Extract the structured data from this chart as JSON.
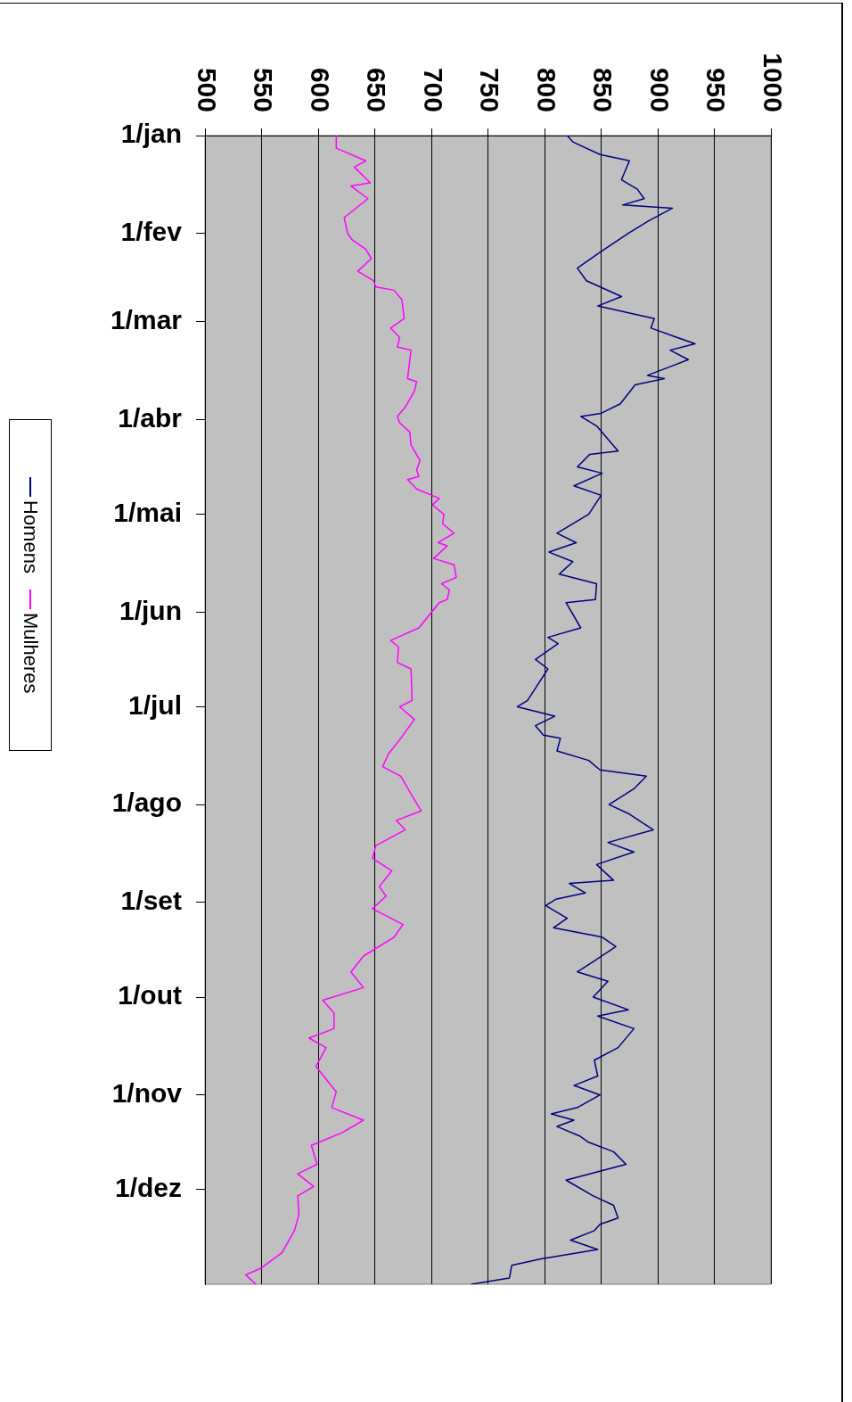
{
  "chart_data": {
    "type": "line",
    "orientation": "horizontal",
    "xlim": [
      500,
      1000
    ],
    "xticks": [
      500,
      550,
      600,
      650,
      700,
      750,
      800,
      850,
      900,
      950,
      1000
    ],
    "yticks": [
      {
        "value": "--01-01",
        "label": "1/jan"
      },
      {
        "value": "--02-01",
        "label": "1/fev"
      },
      {
        "value": "--03-01",
        "label": "1/mar"
      },
      {
        "value": "--04-01",
        "label": "1/abr"
      },
      {
        "value": "--05-01",
        "label": "1/mai"
      },
      {
        "value": "--06-01",
        "label": "1/jun"
      },
      {
        "value": "--07-01",
        "label": "1/jul"
      },
      {
        "value": "--08-01",
        "label": "1/ago"
      },
      {
        "value": "--09-01",
        "label": "1/set"
      },
      {
        "value": "--10-01",
        "label": "1/out"
      },
      {
        "value": "--11-01",
        "label": "1/nov"
      },
      {
        "value": "--12-01",
        "label": "1/dez"
      }
    ],
    "ylim": [
      "--12-31",
      "--01-01"
    ],
    "grid": "x",
    "legend": "left",
    "marker": "none",
    "line_style": "solid",
    "series": [
      {
        "name": "Homens",
        "color": "#000080",
        "x": [
          "--01-01",
          "--01-03",
          "--01-07",
          "--01-09",
          "--01-15",
          "--01-18",
          "--01-21",
          "--01-23",
          "--01-24",
          "--01-28",
          "--02-01",
          "--02-07",
          "--02-12",
          "--02-16",
          "--02-21",
          "--02-24",
          "--02-28",
          "--03-03",
          "--03-08",
          "--03-10",
          "--03-13",
          "--03-18",
          "--03-19",
          "--03-21",
          "--03-27",
          "--03-30",
          "--03-31",
          "--04-03",
          "--04-11",
          "--04-12",
          "--04-16",
          "--04-18",
          "--04-22",
          "--04-25",
          "--05-01",
          "--05-07",
          "--05-10",
          "--05-13",
          "--05-16",
          "--05-20",
          "--05-23",
          "--05-28",
          "--05-29",
          "--06-06",
          "--06-09",
          "--06-11",
          "--06-16",
          "--06-19",
          "--06-29",
          "--07-01",
          "--07-04",
          "--07-07",
          "--07-10",
          "--07-11",
          "--07-15",
          "--07-18",
          "--07-21",
          "--07-23",
          "--07-27",
          "--08-01",
          "--08-04",
          "--08-09",
          "--08-13",
          "--08-16",
          "--08-20",
          "--08-25",
          "--08-26",
          "--08-29",
          "--08-31",
          "--09-02",
          "--09-06",
          "--09-09",
          "--09-12",
          "--09-15",
          "--09-20",
          "--09-23",
          "--09-26",
          "--10-01",
          "--10-05",
          "--10-07",
          "--10-11",
          "--10-17",
          "--10-21",
          "--10-26",
          "--10-29",
          "--11-01",
          "--11-05",
          "--11-07",
          "--11-09",
          "--11-11",
          "--11-14",
          "--11-16",
          "--11-19",
          "--11-23",
          "--11-28",
          "--12-03",
          "--12-06",
          "--12-10",
          "--12-12",
          "--12-14",
          "--12-17",
          "--12-20",
          "--12-23",
          "--12-25",
          "--12-29",
          "--12-31"
        ],
        "values": [
          820,
          825,
          849,
          875,
          868,
          882,
          888,
          869,
          913,
          892,
          874,
          849,
          829,
          837,
          868,
          847,
          897,
          894,
          933,
          911,
          927,
          891,
          906,
          880,
          867,
          850,
          832,
          846,
          865,
          840,
          829,
          851,
          826,
          850,
          839,
          811,
          828,
          804,
          825,
          813,
          846,
          845,
          819,
          832,
          803,
          812,
          792,
          803,
          785,
          776,
          809,
          792,
          799,
          814,
          811,
          839,
          849,
          890,
          879,
          857,
          875,
          896,
          856,
          879,
          846,
          861,
          822,
          836,
          810,
          801,
          820,
          808,
          851,
          863,
          842,
          829,
          856,
          843,
          874,
          847,
          879,
          865,
          844,
          847,
          826,
          849,
          829,
          806,
          826,
          811,
          831,
          839,
          861,
          872,
          819,
          843,
          861,
          865,
          849,
          844,
          823,
          847,
          796,
          771,
          769,
          735
        ]
      },
      {
        "name": "Mulheres",
        "color": "#ff00ff",
        "x": [
          "--01-01",
          "--01-05",
          "--01-09",
          "--01-11",
          "--01-16",
          "--01-17",
          "--01-21",
          "--01-27",
          "--02-01",
          "--02-03",
          "--02-06",
          "--02-09",
          "--02-13",
          "--02-16",
          "--02-18",
          "--02-19",
          "--02-22",
          "--02-25",
          "--02-28",
          "--03-03",
          "--03-06",
          "--03-09",
          "--03-10",
          "--03-19",
          "--03-20",
          "--03-23",
          "--03-28",
          "--03-31",
          "--04-02",
          "--04-05",
          "--04-09",
          "--04-14",
          "--04-17",
          "--04-19",
          "--04-20",
          "--04-23",
          "--04-26",
          "--04-28",
          "--05-01",
          "--05-04",
          "--05-07",
          "--05-10",
          "--05-11",
          "--05-15",
          "--05-17",
          "--05-21",
          "--05-23",
          "--05-25",
          "--05-28",
          "--05-29",
          "--06-06",
          "--06-10",
          "--06-12",
          "--06-17",
          "--06-19",
          "--06-29",
          "--07-01",
          "--07-05",
          "--07-11",
          "--07-16",
          "--07-20",
          "--07-23",
          "--07-28",
          "--08-03",
          "--08-06",
          "--08-09",
          "--08-14",
          "--08-18",
          "--08-22",
          "--08-27",
          "--08-30",
          "--09-03",
          "--09-08",
          "--09-12",
          "--09-18",
          "--09-23",
          "--09-28",
          "--10-02",
          "--10-06",
          "--10-11",
          "--10-14",
          "--10-17",
          "--10-23",
          "--10-31",
          "--11-05",
          "--11-09",
          "--11-13",
          "--11-17",
          "--11-23",
          "--11-26",
          "--11-30",
          "--12-03",
          "--12-09",
          "--12-14",
          "--12-21",
          "--12-26",
          "--12-28",
          "--12-31"
        ],
        "values": [
          616,
          616,
          642,
          632,
          646,
          629,
          644,
          623,
          626,
          630,
          642,
          647,
          635,
          649,
          651,
          667,
          674,
          675,
          676,
          664,
          672,
          670,
          682,
          679,
          687,
          685,
          677,
          670,
          672,
          681,
          682,
          690,
          687,
          689,
          679,
          687,
          707,
          701,
          711,
          710,
          720,
          706,
          714,
          702,
          720,
          722,
          709,
          716,
          714,
          707,
          689,
          664,
          671,
          670,
          682,
          683,
          672,
          685,
          673,
          662,
          657,
          673,
          681,
          691,
          669,
          677,
          651,
          648,
          665,
          654,
          660,
          648,
          675,
          667,
          640,
          629,
          640,
          604,
          614,
          614,
          592,
          607,
          598,
          616,
          612,
          640,
          621,
          594,
          599,
          582,
          596,
          582,
          583,
          579,
          568,
          549,
          536,
          545
        ]
      }
    ]
  }
}
